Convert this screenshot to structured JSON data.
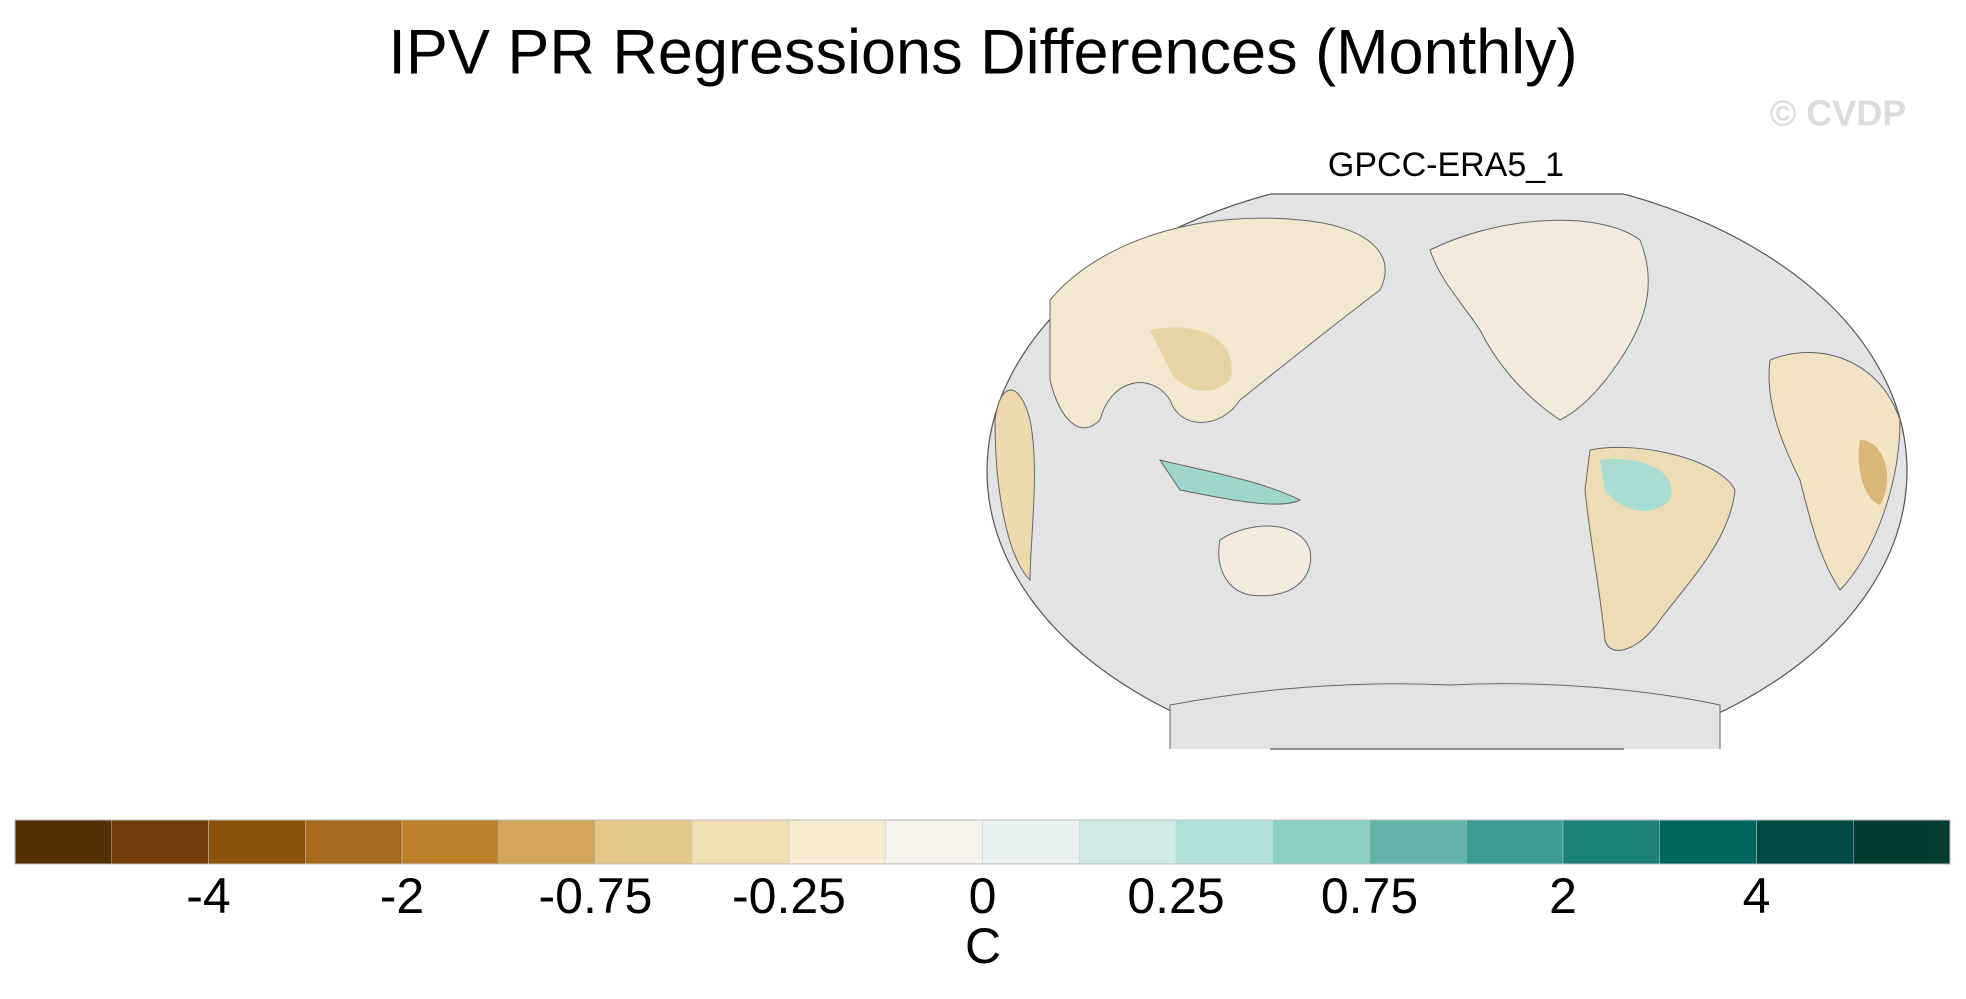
{
  "header": {
    "title": "IPV PR Regressions Differences (Monthly)",
    "watermark": "© CVDP"
  },
  "panels": [
    {
      "title": "GPCC-ERA5_1"
    }
  ],
  "colorbar": {
    "colors": [
      "#543005",
      "#723f0a",
      "#8c510a",
      "#a6691d",
      "#bf812d",
      "#d1a55a",
      "#e3c888",
      "#f0dfb2",
      "#f5ebd0",
      "#f5f2ec",
      "#e9f2f1",
      "#cfebe6",
      "#b2e0da",
      "#8acfc3",
      "#62b4a9",
      "#3d9c93",
      "#1c8179",
      "#01665e",
      "#014c42",
      "#003c30"
    ],
    "ticks": [
      -4,
      -2,
      -0.75,
      -0.25,
      0,
      0.25,
      0.75,
      2,
      4
    ],
    "label": "C"
  }
}
